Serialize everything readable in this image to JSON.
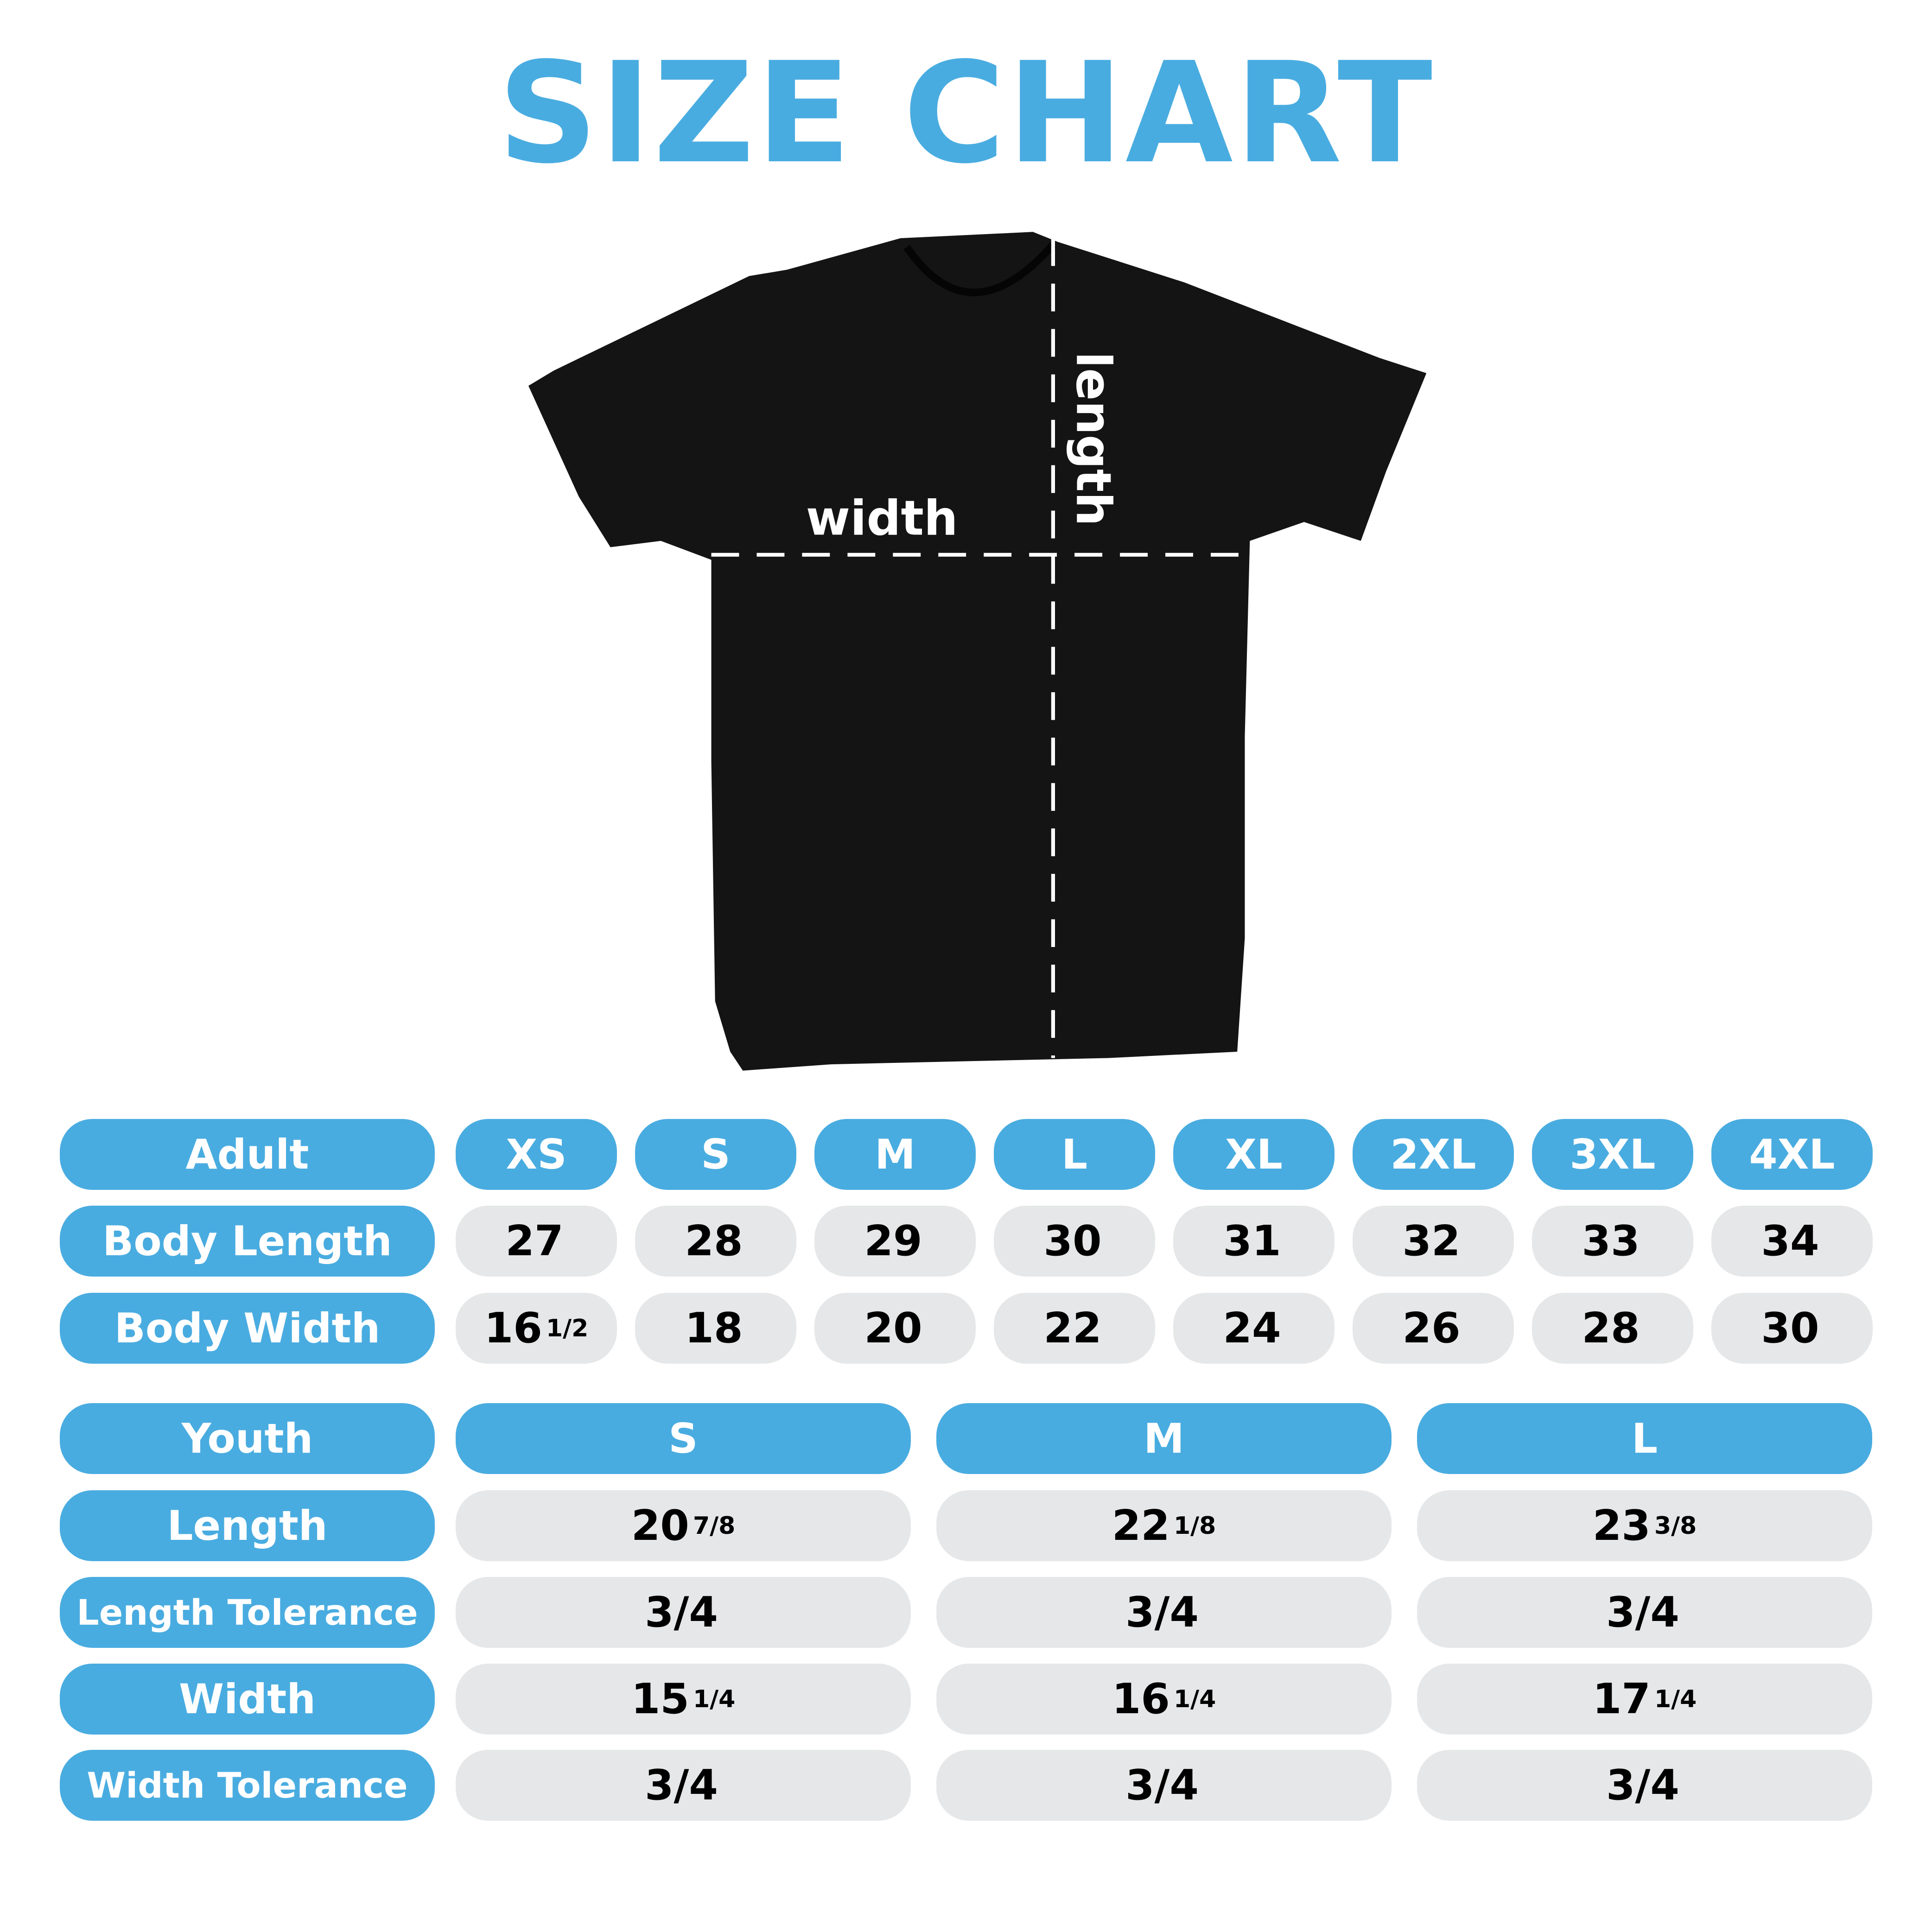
{
  "title": "SIZE CHART",
  "colors": {
    "accent": "#49ACE0",
    "cell_bg": "#E6E7E8",
    "shirt": "#141414"
  },
  "shirt": {
    "width_label": "width",
    "length_label": "length"
  },
  "adult": {
    "header": "Adult",
    "sizes": [
      "XS",
      "S",
      "M",
      "L",
      "XL",
      "2XL",
      "3XL",
      "4XL"
    ],
    "rows": [
      {
        "label": "Body Length",
        "values": [
          {
            "w": "27",
            "f": ""
          },
          {
            "w": "28",
            "f": ""
          },
          {
            "w": "29",
            "f": ""
          },
          {
            "w": "30",
            "f": ""
          },
          {
            "w": "31",
            "f": ""
          },
          {
            "w": "32",
            "f": ""
          },
          {
            "w": "33",
            "f": ""
          },
          {
            "w": "34",
            "f": ""
          }
        ]
      },
      {
        "label": "Body Width",
        "values": [
          {
            "w": "16",
            "f": "1/2"
          },
          {
            "w": "18",
            "f": ""
          },
          {
            "w": "20",
            "f": ""
          },
          {
            "w": "22",
            "f": ""
          },
          {
            "w": "24",
            "f": ""
          },
          {
            "w": "26",
            "f": ""
          },
          {
            "w": "28",
            "f": ""
          },
          {
            "w": "30",
            "f": ""
          }
        ]
      }
    ]
  },
  "youth": {
    "header": "Youth",
    "sizes": [
      "S",
      "M",
      "L"
    ],
    "rows": [
      {
        "label": "Length",
        "values": [
          {
            "w": "20",
            "f": "7/8"
          },
          {
            "w": "22",
            "f": "1/8"
          },
          {
            "w": "23",
            "f": "3/8"
          }
        ]
      },
      {
        "label": "Length Tolerance",
        "values": [
          {
            "w": "3/4",
            "f": ""
          },
          {
            "w": "3/4",
            "f": ""
          },
          {
            "w": "3/4",
            "f": ""
          }
        ]
      },
      {
        "label": "Width",
        "values": [
          {
            "w": "15",
            "f": "1/4"
          },
          {
            "w": "16",
            "f": "1/4"
          },
          {
            "w": "17",
            "f": "1/4"
          }
        ]
      },
      {
        "label": "Width Tolerance",
        "values": [
          {
            "w": "3/4",
            "f": ""
          },
          {
            "w": "3/4",
            "f": ""
          },
          {
            "w": "3/4",
            "f": ""
          }
        ]
      }
    ]
  }
}
